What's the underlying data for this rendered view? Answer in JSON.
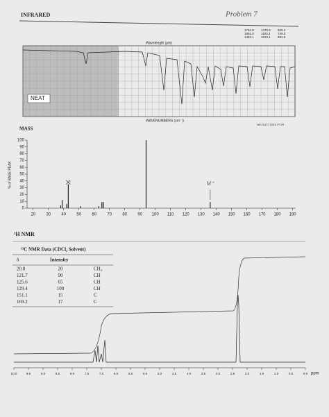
{
  "header": {
    "title": "INFRARED",
    "note": "Problem 7"
  },
  "infrared": {
    "label": "NEAT",
    "x_axis_top": "Wavelength (μm)",
    "x_axis_bottom": "WAVENUMBERS (cm⁻¹)",
    "instrument": "NICOLET 20SX FT-IR",
    "peaks": [
      [
        "1764.8",
        "1370.6",
        "925.2"
      ],
      [
        "1593.0",
        "1193.3",
        "749.0"
      ],
      [
        "1493.1",
        "1013.1",
        "691.9"
      ]
    ]
  },
  "mass": {
    "type": "bar",
    "title": "MASS",
    "y_label": "% of BASE PEAK",
    "annotation": "M⁺",
    "x": [
      38,
      39,
      42,
      43,
      51,
      63,
      65,
      66,
      94,
      136
    ],
    "values": [
      4,
      12,
      6,
      35,
      3,
      3,
      9,
      9,
      100,
      9
    ],
    "xlim": [
      16,
      192
    ],
    "ylim": [
      0,
      100
    ],
    "xticks": [
      20,
      30,
      40,
      50,
      60,
      70,
      80,
      90,
      100,
      110,
      120,
      130,
      140,
      150,
      160,
      170,
      180,
      190
    ],
    "yticks": [
      0,
      10,
      20,
      30,
      40,
      50,
      60,
      70,
      80,
      90,
      100
    ]
  },
  "h_nmr": {
    "title": "¹H NMR",
    "unit": "ppm",
    "xlim": [
      10,
      0
    ],
    "xticks": [
      {
        "value": 10,
        "label": "10.0"
      },
      9.5,
      {
        "value": 9,
        "label": "9.0"
      },
      8.5,
      {
        "value": 8,
        "label": "8.0"
      },
      7.5,
      {
        "value": 7,
        "label": "7.0"
      },
      6.5,
      {
        "value": 6,
        "label": "6.0"
      },
      5.5,
      {
        "value": 5,
        "label": "5.0"
      },
      4.5,
      {
        "value": 4,
        "label": "4.0"
      },
      3.5,
      {
        "value": 3,
        "label": "3.0"
      },
      2.5,
      {
        "value": 2,
        "label": "2.0"
      },
      1.5,
      {
        "value": 1,
        "label": "1.0"
      },
      0.5,
      {
        "value": 0,
        "label": "0.0"
      }
    ]
  },
  "c13_table": {
    "title": "¹³C NMR Data (CDCl₃ Solvent)",
    "headers": [
      "δ",
      "Intensity"
    ],
    "rows": [
      [
        "20.8",
        "20",
        "CH₃"
      ],
      [
        "121.7",
        "90",
        "CH"
      ],
      [
        "125.6",
        "65",
        "CH"
      ],
      [
        "129.4",
        "100",
        "CH"
      ],
      [
        "151.1",
        "15",
        "C"
      ],
      [
        "169.2",
        "17",
        "C"
      ]
    ]
  }
}
